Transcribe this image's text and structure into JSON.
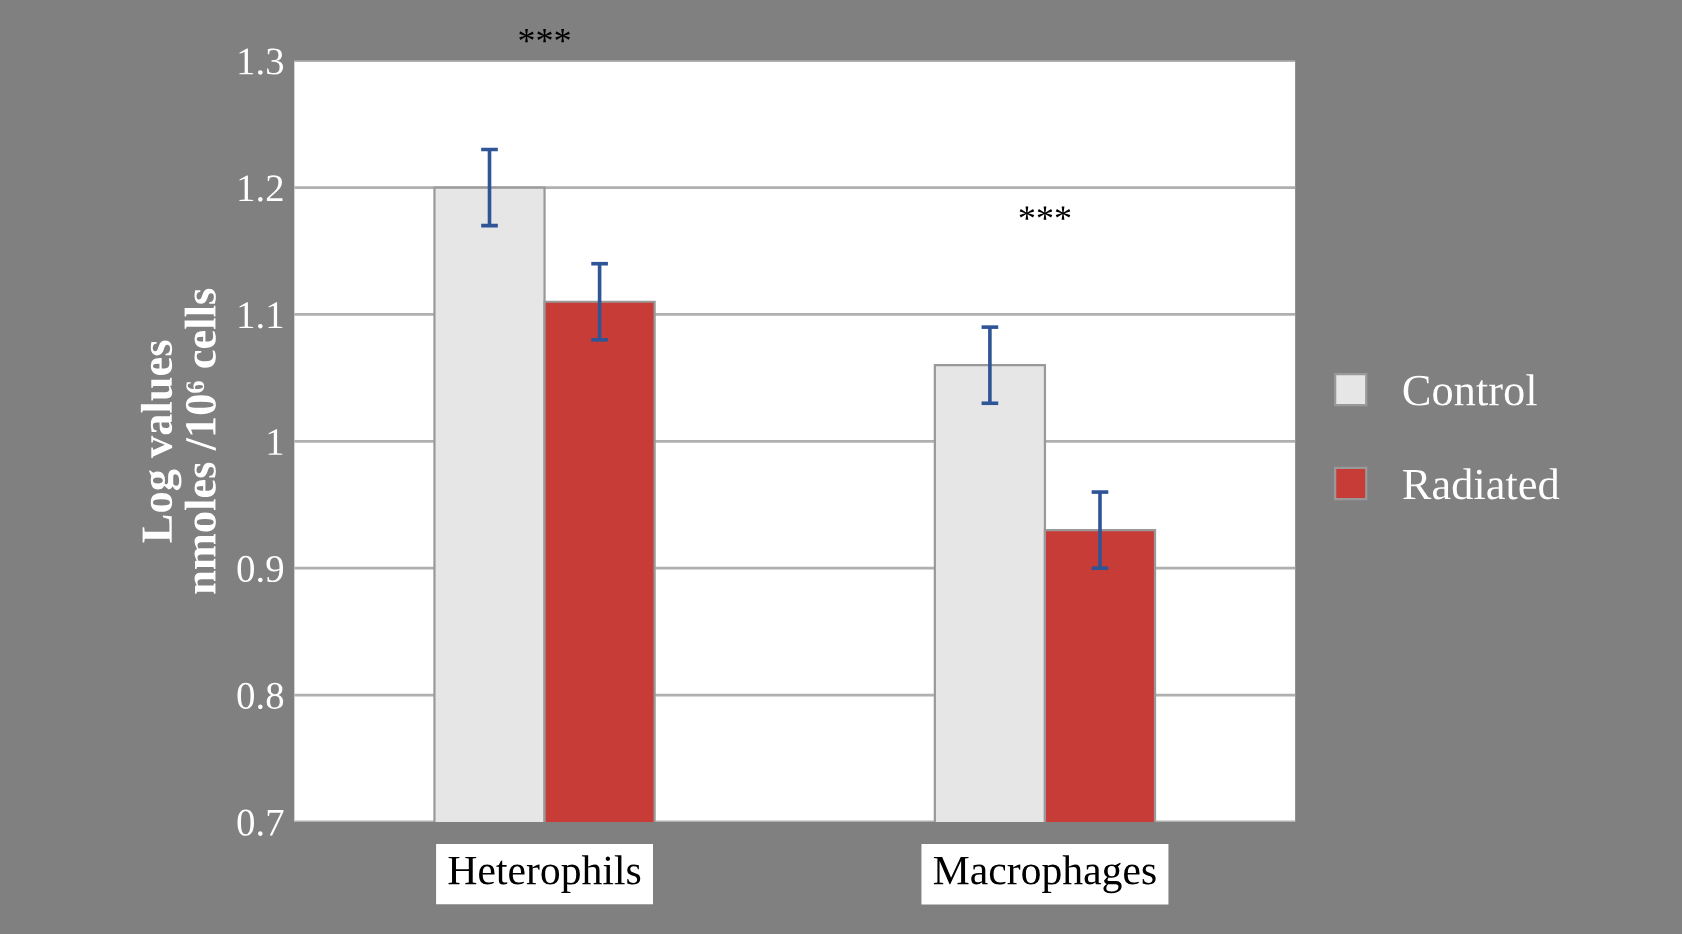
{
  "chart_data": {
    "type": "bar",
    "ylabel": "Log values\nnmoles /10⁶ cells",
    "categories": [
      "Heterophils",
      "Macrophages"
    ],
    "series": [
      {
        "name": "Control",
        "color": "#e6e6e6",
        "values": [
          1.2,
          1.06
        ],
        "errors": [
          0.03,
          0.03
        ]
      },
      {
        "name": "Radiated",
        "color": "#c83c38",
        "values": [
          1.11,
          0.93
        ],
        "errors": [
          0.03,
          0.03
        ]
      }
    ],
    "ylim": [
      0.7,
      1.3
    ],
    "yticks": [
      0.7,
      0.8,
      0.9,
      1,
      1.1,
      1.2,
      1.3
    ],
    "grid": "y",
    "legend": "right",
    "annotations": [
      "***",
      "***"
    ]
  }
}
